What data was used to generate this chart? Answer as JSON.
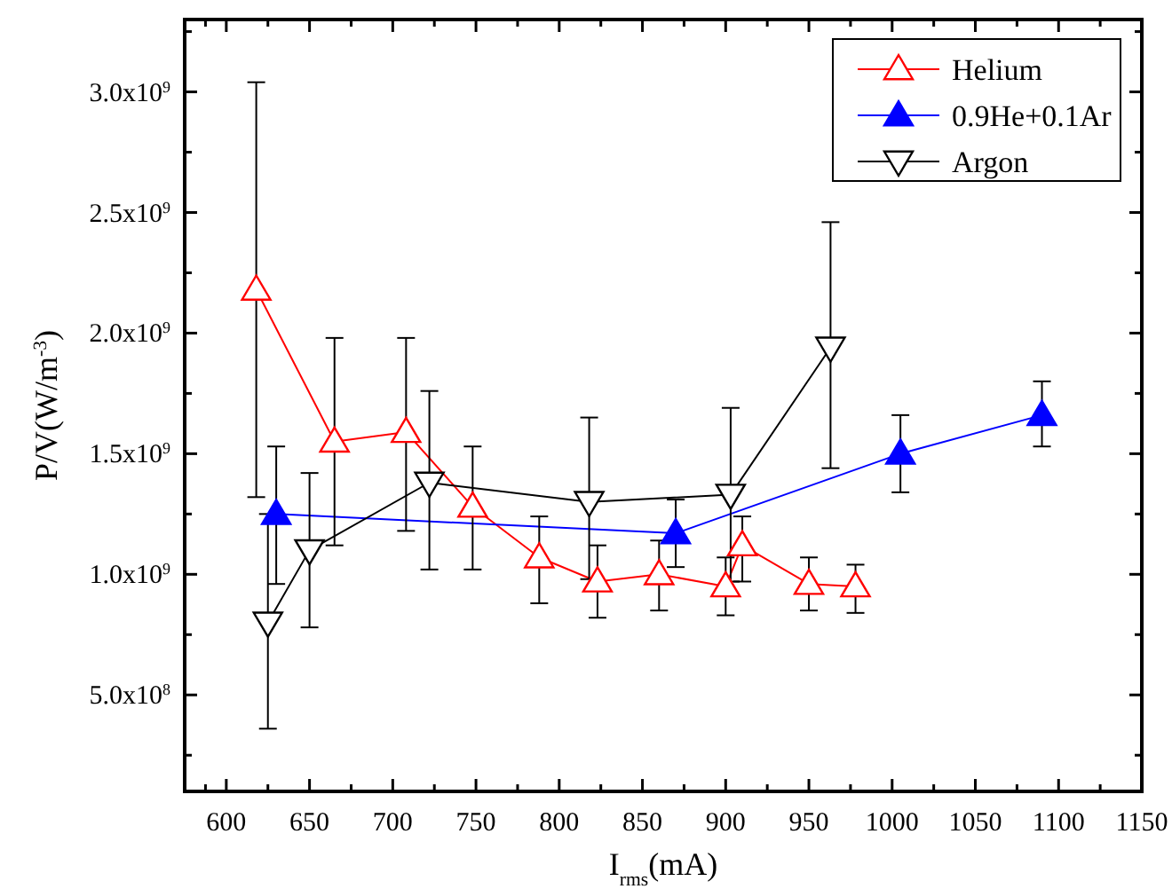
{
  "chart_data": {
    "type": "line",
    "xlabel": "I$_{rms}$(mA)",
    "ylabel": "P/V(W/m$^{-3}$)",
    "xlim": [
      575,
      1150
    ],
    "ylim": [
      100000000,
      3300000000
    ],
    "xticks": [
      {
        "value": 587.5,
        "label": null
      },
      600,
      {
        "value": 625,
        "label": null
      },
      650,
      {
        "value": 675,
        "label": null
      },
      700,
      {
        "value": 725,
        "label": null
      },
      750,
      {
        "value": 775,
        "label": null
      },
      800,
      {
        "value": 825,
        "label": null
      },
      850,
      {
        "value": 875,
        "label": null
      },
      900,
      {
        "value": 925,
        "label": null
      },
      950,
      {
        "value": 975,
        "label": null
      },
      1000,
      {
        "value": 1025,
        "label": null
      },
      1050,
      {
        "value": 1075,
        "label": null
      },
      1100,
      {
        "value": 1125,
        "label": null
      },
      1150
    ],
    "yticks": [
      {
        "value": 250000000,
        "label": null
      },
      {
        "value": 500000000,
        "label": "5.0x10$^{8}$"
      },
      {
        "value": 750000000,
        "label": null
      },
      {
        "value": 1000000000,
        "label": "1.0x10$^{9}$"
      },
      {
        "value": 1250000000,
        "label": null
      },
      {
        "value": 1500000000,
        "label": "1.5x10$^{9}$"
      },
      {
        "value": 1750000000,
        "label": null
      },
      {
        "value": 2000000000,
        "label": "2.0x10$^{9}$"
      },
      {
        "value": 2250000000,
        "label": null
      },
      {
        "value": 2500000000,
        "label": "2.5x10$^{9}$"
      },
      {
        "value": 2750000000,
        "label": null
      },
      {
        "value": 3000000000,
        "label": "3.0x10$^{9}$"
      },
      {
        "value": 3250000000,
        "label": null
      }
    ],
    "grid": false,
    "legend": "top right",
    "line_style": "solid",
    "series": [
      {
        "name": "Helium",
        "color": "#ff0000",
        "marker": "triangle",
        "x": [
          618,
          665,
          708,
          748,
          788,
          823,
          860,
          900,
          910,
          950,
          978
        ],
        "values": [
          2180000000,
          1550000000,
          1590000000,
          1280000000,
          1070000000,
          970000000,
          1000000000,
          950000000,
          1120000000,
          960000000,
          950000000
        ],
        "errors": [
          [
            1320000000,
            3040000000
          ],
          [
            1120000000,
            1980000000
          ],
          [
            1180000000,
            1980000000
          ],
          [
            1020000000,
            1530000000
          ],
          [
            880000000,
            1240000000
          ],
          [
            820000000,
            1120000000
          ],
          [
            850000000,
            1140000000
          ],
          [
            830000000,
            1070000000
          ],
          [
            970000000,
            1240000000
          ],
          [
            850000000,
            1070000000
          ],
          [
            840000000,
            1040000000
          ]
        ]
      },
      {
        "name": "0.9He+0.1Ar",
        "color": "#0000ff",
        "marker": "triangle-filled",
        "x": [
          630,
          870,
          1005,
          1090
        ],
        "values": [
          1250000000,
          1170000000,
          1500000000,
          1660000000
        ],
        "errors": [
          [
            960000000,
            1530000000
          ],
          [
            1030000000,
            1310000000
          ],
          [
            1340000000,
            1660000000
          ],
          [
            1530000000,
            1800000000
          ]
        ]
      },
      {
        "name": "Argon",
        "color": "#000000",
        "marker": "triangle-down",
        "x": [
          625,
          650,
          722,
          818,
          903,
          963
        ],
        "values": [
          800000000,
          1100000000,
          1380000000,
          1300000000,
          1330000000,
          1940000000
        ],
        "errors": [
          [
            360000000,
            1250000000
          ],
          [
            780000000,
            1420000000
          ],
          [
            1020000000,
            1760000000
          ],
          [
            980000000,
            1650000000
          ],
          [
            970000000,
            1690000000
          ],
          [
            1440000000,
            2460000000
          ]
        ]
      }
    ]
  }
}
